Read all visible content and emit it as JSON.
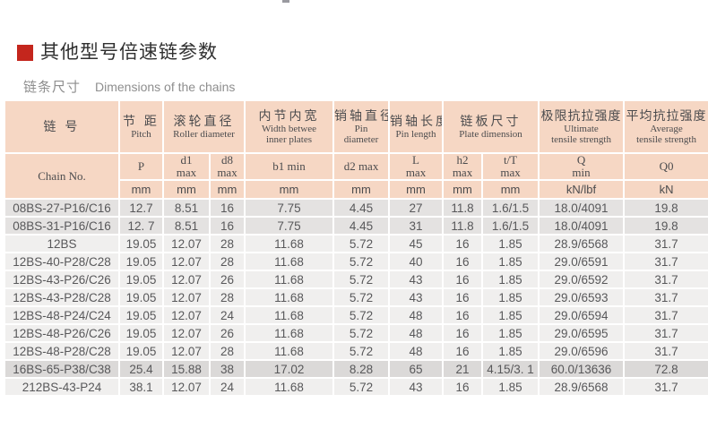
{
  "page": {
    "title": "其他型号倍速链参数",
    "subtitle_zh": "链条尺寸",
    "subtitle_en": "Dimensions of the chains"
  },
  "colors": {
    "accent_red": "#c4261d",
    "header_bg": "#f6d7c4",
    "row_light": "#f0efee",
    "row_mid": "#e4e2e1",
    "row_dark": "#dbd9d8",
    "body_text": "#58585a"
  },
  "table": {
    "header": {
      "chain": {
        "zh": "链 号",
        "en": "Chain No."
      },
      "pitch": {
        "zh": "节 距",
        "en": "Pitch"
      },
      "roller": {
        "zh": "滚轮直径",
        "en": "Roller diameter"
      },
      "width": {
        "zh": "内节内宽",
        "en1": "Width betwee",
        "en2": "inner plates"
      },
      "pin_diameter": {
        "zh": "销轴直径",
        "en1": "Pin",
        "en2": "diameter"
      },
      "pin_length": {
        "zh": "销轴长度",
        "en": "Pin length"
      },
      "plate": {
        "zh": "链板尺寸",
        "en": "Plate dimension"
      },
      "ultimate": {
        "zh": "极限抗拉强度",
        "en1": "Ultimate",
        "en2": "tensile strength"
      },
      "average": {
        "zh": "平均抗拉强度",
        "en1": "Average",
        "en2": "tensile strength"
      },
      "sym_p": "P",
      "sym_d1": [
        "d1",
        "max"
      ],
      "sym_d8": [
        "d8",
        "max"
      ],
      "sym_b1": "b1 min",
      "sym_d2": "d2 max",
      "sym_L": [
        "L",
        "max"
      ],
      "sym_h2": [
        "h2",
        "max"
      ],
      "sym_t": [
        "t/T",
        "max"
      ],
      "sym_Q": [
        "Q",
        "min"
      ],
      "sym_Q0": "Q0",
      "units": [
        "mm",
        "mm",
        "mm",
        "mm",
        "mm",
        "mm",
        "mm",
        "mm",
        "kN/lbf",
        "kN"
      ]
    },
    "rows": [
      {
        "shade": "mid",
        "cells": [
          "08BS-27-P16/C16",
          "12.7",
          "8.51",
          "16",
          "7.75",
          "4.45",
          "27",
          "11.8",
          "1.6/1.5",
          "18.0/4091",
          "19.8"
        ]
      },
      {
        "shade": "mid",
        "cells": [
          "08BS-31-P16/C16",
          "12. 7",
          "8.51",
          "16",
          "7.75",
          "4.45",
          "31",
          "11.8",
          "1.6/1.5",
          "18.0/4091",
          "19.8"
        ]
      },
      {
        "shade": "light",
        "cells": [
          "12BS",
          "19.05",
          "12.07",
          "28",
          "11.68",
          "5.72",
          "45",
          "16",
          "1.85",
          "28.9/6568",
          "31.7"
        ]
      },
      {
        "shade": "light",
        "cells": [
          "12BS-40-P28/C28",
          "19.05",
          "12.07",
          "28",
          "11.68",
          "5.72",
          "40",
          "16",
          "1.85",
          "29.0/6591",
          "31.7"
        ]
      },
      {
        "shade": "light",
        "cells": [
          "12BS-43-P26/C26",
          "19.05",
          "12.07",
          "26",
          "11.68",
          "5.72",
          "43",
          "16",
          "1.85",
          "29.0/6592",
          "31.7"
        ]
      },
      {
        "shade": "light",
        "cells": [
          "12BS-43-P28/C28",
          "19.05",
          "12.07",
          "28",
          "11.68",
          "5.72",
          "43",
          "16",
          "1.85",
          "29.0/6593",
          "31.7"
        ]
      },
      {
        "shade": "light",
        "cells": [
          "12BS-48-P24/C24",
          "19.05",
          "12.07",
          "24",
          "11.68",
          "5.72",
          "48",
          "16",
          "1.85",
          "29.0/6594",
          "31.7"
        ]
      },
      {
        "shade": "light",
        "cells": [
          "12BS-48-P26/C26",
          "19.05",
          "12.07",
          "26",
          "11.68",
          "5.72",
          "48",
          "16",
          "1.85",
          "29.0/6595",
          "31.7"
        ]
      },
      {
        "shade": "light",
        "cells": [
          "12BS-48-P28/C28",
          "19.05",
          "12.07",
          "28",
          "11.68",
          "5.72",
          "48",
          "16",
          "1.85",
          "29.0/6596",
          "31.7"
        ]
      },
      {
        "shade": "dark",
        "cells": [
          "16BS-65-P38/C38",
          "25.4",
          "15.88",
          "38",
          "17.02",
          "8.28",
          "65",
          "21",
          "4.15/3. 1",
          "60.0/13636",
          "72.8"
        ]
      },
      {
        "shade": "light",
        "cells": [
          "212BS-43-P24",
          "38.1",
          "12.07",
          "24",
          "11.68",
          "5.72",
          "43",
          "16",
          "1.85",
          "28.9/6568",
          "31.7"
        ]
      }
    ]
  }
}
